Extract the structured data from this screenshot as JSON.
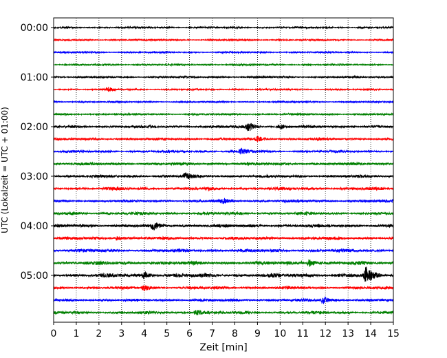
{
  "chart_data": {
    "type": "line",
    "subtype": "helicorder",
    "xlabel": "Zeit  [min]",
    "ylabel": "UTC (Lokalzeit = UTC + 01:00)",
    "xlim": [
      0,
      15
    ],
    "x_ticks": [
      "0",
      "1",
      "2",
      "3",
      "4",
      "5",
      "6",
      "7",
      "8",
      "9",
      "10",
      "11",
      "12",
      "13",
      "14",
      "15"
    ],
    "y_tick_labels": [
      "00:00",
      "01:00",
      "02:00",
      "03:00",
      "04:00",
      "05:00"
    ],
    "minutes_per_trace": 15,
    "trace_count": 24,
    "grid": "vertical-dotted",
    "colors": [
      "#000000",
      "#ff0000",
      "#0000ff",
      "#008000"
    ],
    "traces": [
      {
        "start": "00:00",
        "color": "#000000",
        "noise": 0.9
      },
      {
        "start": "00:15",
        "color": "#ff0000",
        "noise": 0.8
      },
      {
        "start": "00:30",
        "color": "#0000ff",
        "noise": 0.8
      },
      {
        "start": "00:45",
        "color": "#008000",
        "noise": 0.9
      },
      {
        "start": "01:00",
        "color": "#000000",
        "noise": 0.9
      },
      {
        "start": "01:15",
        "color": "#ff0000",
        "noise": 0.8,
        "events": [
          {
            "t": 2.4,
            "amp": 3
          }
        ]
      },
      {
        "start": "01:30",
        "color": "#0000ff",
        "noise": 0.8
      },
      {
        "start": "01:45",
        "color": "#008000",
        "noise": 0.9
      },
      {
        "start": "02:00",
        "color": "#000000",
        "noise": 1.3,
        "events": [
          {
            "t": 8.6,
            "amp": 7
          },
          {
            "t": 10.0,
            "amp": 3
          }
        ]
      },
      {
        "start": "02:15",
        "color": "#ff0000",
        "noise": 1.2,
        "events": [
          {
            "t": 9.0,
            "amp": 3
          }
        ]
      },
      {
        "start": "02:30",
        "color": "#0000ff",
        "noise": 1.2,
        "events": [
          {
            "t": 8.3,
            "amp": 4
          }
        ]
      },
      {
        "start": "02:45",
        "color": "#008000",
        "noise": 1.4
      },
      {
        "start": "03:00",
        "color": "#000000",
        "noise": 1.4,
        "events": [
          {
            "t": 5.8,
            "amp": 5
          }
        ]
      },
      {
        "start": "03:15",
        "color": "#ff0000",
        "noise": 1.5
      },
      {
        "start": "03:30",
        "color": "#0000ff",
        "noise": 1.3,
        "events": [
          {
            "t": 7.5,
            "amp": 3
          }
        ]
      },
      {
        "start": "03:45",
        "color": "#008000",
        "noise": 1.4
      },
      {
        "start": "04:00",
        "color": "#000000",
        "noise": 1.6,
        "events": [
          {
            "t": 4.4,
            "amp": 4
          }
        ]
      },
      {
        "start": "04:15",
        "color": "#ff0000",
        "noise": 1.5,
        "events": [
          {
            "t": 2.8,
            "amp": 3
          }
        ]
      },
      {
        "start": "04:30",
        "color": "#0000ff",
        "noise": 1.6
      },
      {
        "start": "04:45",
        "color": "#008000",
        "noise": 1.8,
        "events": [
          {
            "t": 11.3,
            "amp": 5
          }
        ]
      },
      {
        "start": "05:00",
        "color": "#000000",
        "noise": 1.9,
        "events": [
          {
            "t": 13.8,
            "amp": 11
          },
          {
            "t": 4.0,
            "amp": 4
          }
        ]
      },
      {
        "start": "05:15",
        "color": "#ff0000",
        "noise": 1.4,
        "events": [
          {
            "t": 4.0,
            "amp": 4
          }
        ]
      },
      {
        "start": "05:30",
        "color": "#0000ff",
        "noise": 1.3,
        "events": [
          {
            "t": 11.9,
            "amp": 5
          }
        ]
      },
      {
        "start": "05:45",
        "color": "#008000",
        "noise": 1.4,
        "events": [
          {
            "t": 6.3,
            "amp": 5
          }
        ]
      }
    ]
  }
}
